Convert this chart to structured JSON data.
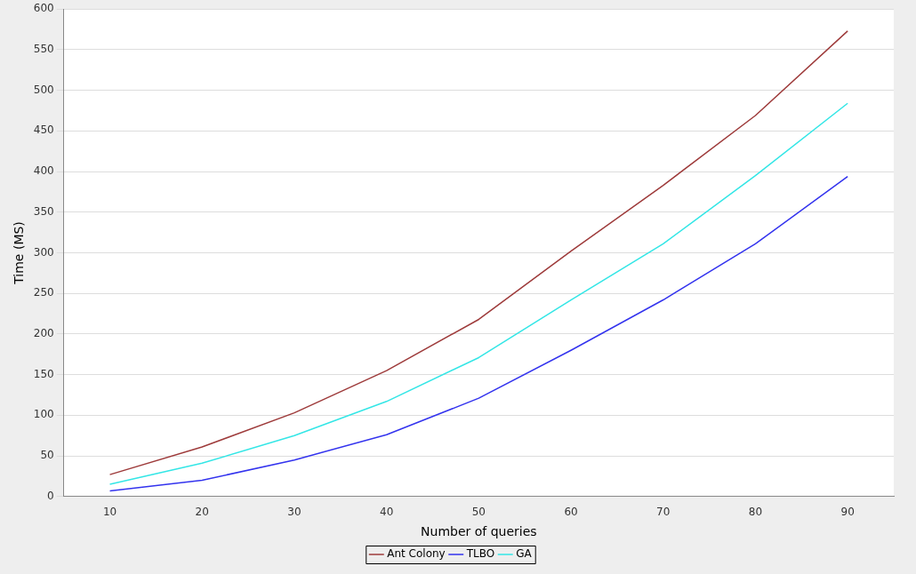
{
  "chart_data": {
    "type": "line",
    "xlabel": "Number of queries",
    "ylabel": "Time (MS)",
    "categories": [
      "10",
      "20",
      "30",
      "40",
      "50",
      "60",
      "70",
      "80",
      "90"
    ],
    "series": [
      {
        "name": "Ant Colony",
        "color": "#9e3b3b",
        "values": [
          27,
          61,
          103,
          155,
          218,
          302,
          383,
          469,
          573
        ]
      },
      {
        "name": "TLBO",
        "color": "#3333ee",
        "values": [
          7,
          20,
          45,
          76,
          121,
          180,
          242,
          311,
          394
        ]
      },
      {
        "name": "GA",
        "color": "#33e6e6",
        "values": [
          15,
          41,
          75,
          117,
          171,
          242,
          311,
          395,
          484
        ]
      }
    ],
    "ylim": [
      0,
      600
    ],
    "yticks": [
      0,
      50,
      100,
      150,
      200,
      250,
      300,
      350,
      400,
      450,
      500,
      550,
      600
    ],
    "grid": "y",
    "legend": "bottom",
    "marker": "none",
    "line_style": "solid"
  }
}
